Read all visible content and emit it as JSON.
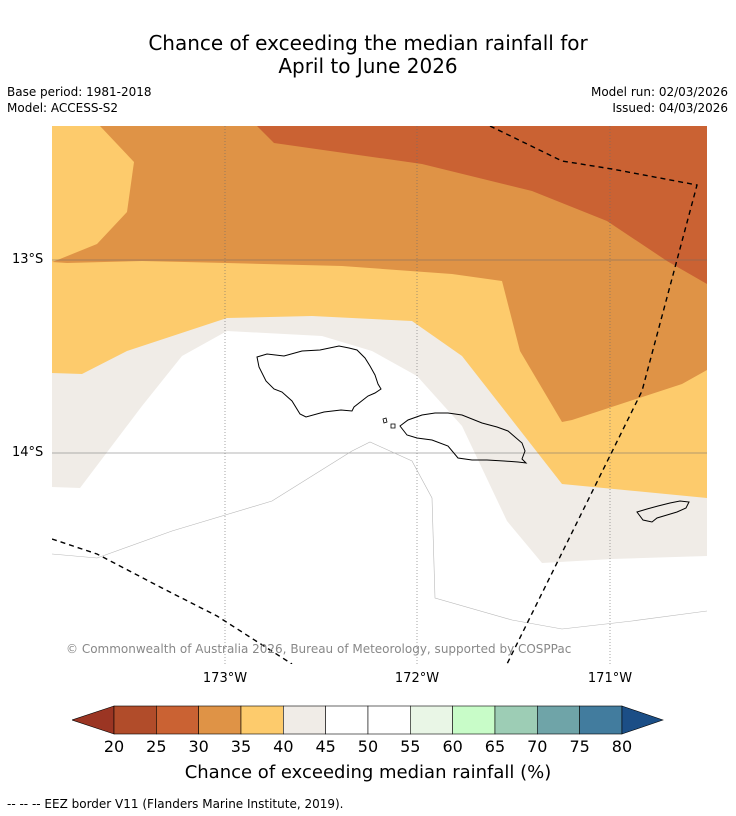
{
  "title_line1": "Chance of exceeding the median rainfall for",
  "title_line2": "April to June 2026",
  "meta": {
    "base_period": "Base period: 1981-2018",
    "model": "Model: ACCESS-S2",
    "model_run": "Model run: 02/03/2026",
    "issued": "Issued: 04/03/2026"
  },
  "map": {
    "lat_labels": [
      "13°S",
      "14°S"
    ],
    "lon_labels": [
      "173°W",
      "172°W",
      "171°W"
    ],
    "copyright": "© Commonwealth of Australia 2026, Bureau of Meteorology, supported by COSPPac"
  },
  "colorbar": {
    "ticks": [
      "20",
      "25",
      "30",
      "35",
      "40",
      "45",
      "50",
      "55",
      "60",
      "65",
      "70",
      "75",
      "80"
    ],
    "colors": [
      "#9b3523",
      "#b14c2a",
      "#ca6233",
      "#df9346",
      "#fdcb6c",
      "#f0ece7",
      "#ffffff",
      "#ffffff",
      "#e9f6e6",
      "#c8fcc8",
      "#9dcdb5",
      "#6fa4a8",
      "#427c9e",
      "#1b4e86"
    ],
    "label": "Chance of exceeding median rainfall (%)"
  },
  "colors": {
    "c25_30": "#ca6233",
    "c30_35": "#df9346",
    "c35_40": "#fdcb6c",
    "c40_45": "#f0ece7",
    "c45_55": "#ffffff"
  },
  "footer": "--  --  -- EEZ border V11 (Flanders Marine Institute, 2019)."
}
